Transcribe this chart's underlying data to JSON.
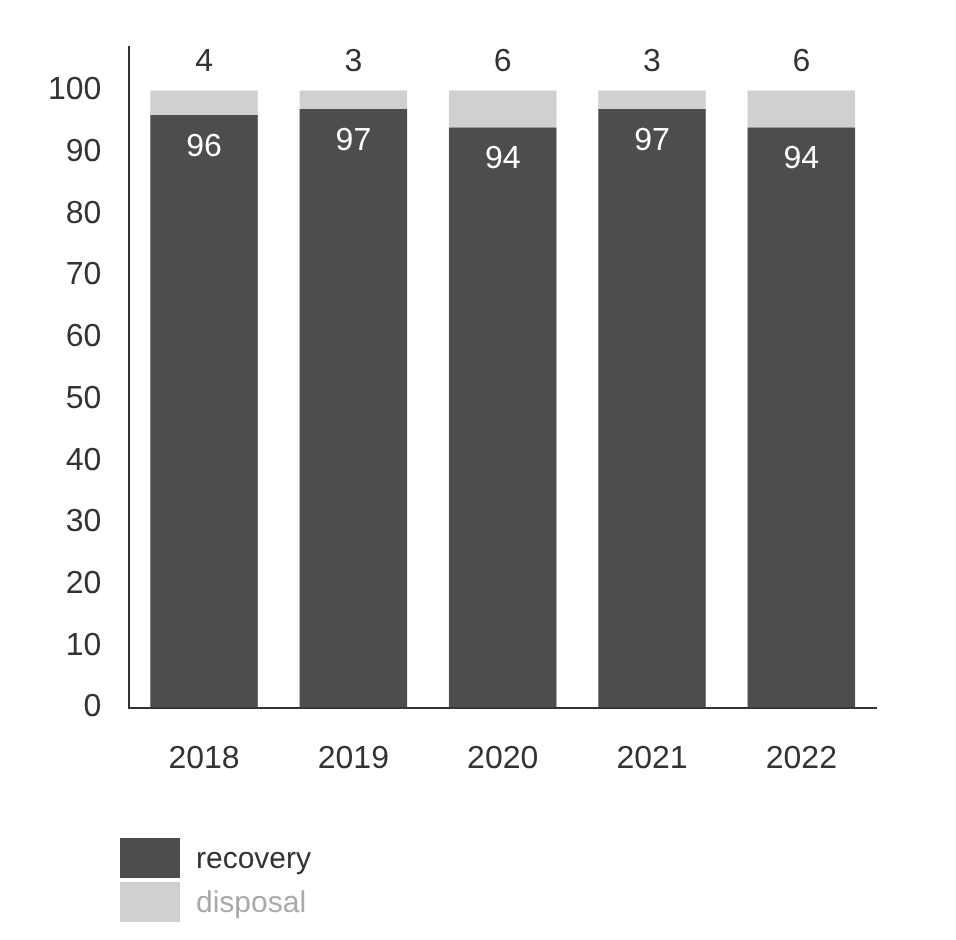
{
  "chart_data": {
    "type": "bar",
    "stacked": true,
    "categories": [
      "2018",
      "2019",
      "2020",
      "2021",
      "2022"
    ],
    "series": [
      {
        "name": "recovery",
        "color": "#4d4d4f",
        "values": [
          96,
          97,
          94,
          97,
          94
        ]
      },
      {
        "name": "disposal",
        "color": "#d0d0d0",
        "values": [
          4,
          3,
          6,
          3,
          6
        ]
      }
    ],
    "ylim": [
      0,
      107
    ],
    "yticks": [
      0,
      10,
      20,
      30,
      40,
      50,
      60,
      70,
      80,
      90,
      100
    ],
    "grid": false,
    "legend": "bottom left",
    "data_labels": true
  }
}
